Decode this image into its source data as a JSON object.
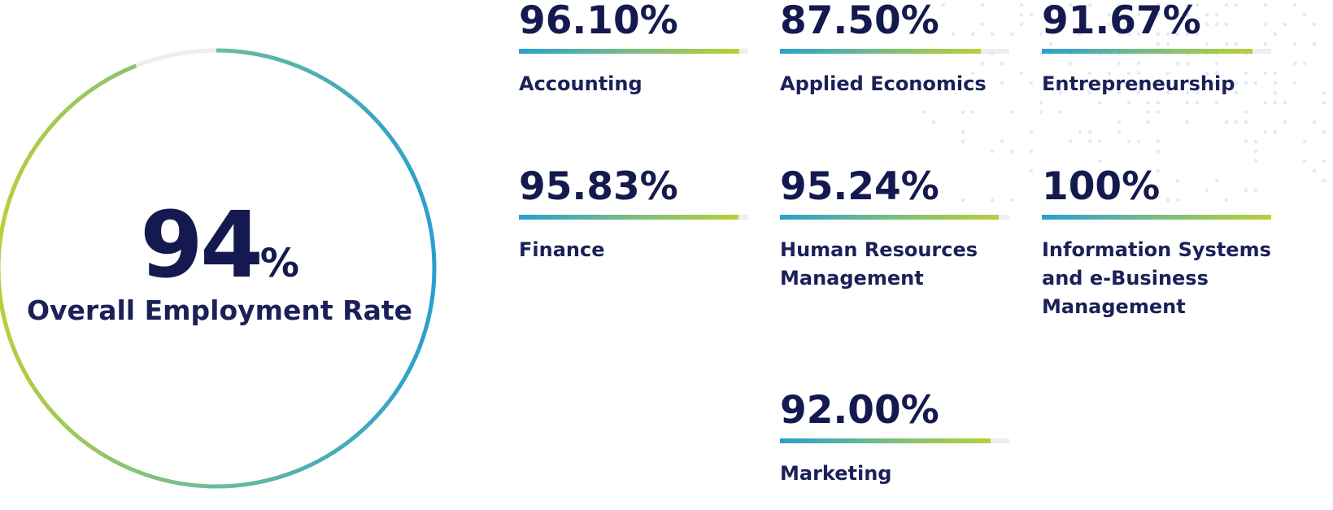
{
  "chart_data": {
    "type": "bar",
    "overall": {
      "value": 94,
      "value_text": "94",
      "unit": "%",
      "label": "Overall Employment Rate"
    },
    "categories": [
      "Accounting",
      "Applied Economics",
      "Entrepreneurship",
      "Finance",
      "Human Resources Management",
      "Information Systems and e-Business Management",
      "Marketing"
    ],
    "values": [
      96.1,
      87.5,
      91.67,
      95.83,
      95.24,
      100,
      92.0
    ],
    "value_labels": [
      "96.10%",
      "87.50%",
      "91.67%",
      "95.83%",
      "95.24%",
      "100%",
      "92.00%"
    ],
    "ylim": [
      0,
      100
    ]
  },
  "colors": {
    "text_dark": "#141a4f",
    "gradient_start": "#2a9fd0",
    "gradient_mid": "#7fbf7a",
    "gradient_end": "#b8cf3a",
    "track": "#eeeeee"
  }
}
